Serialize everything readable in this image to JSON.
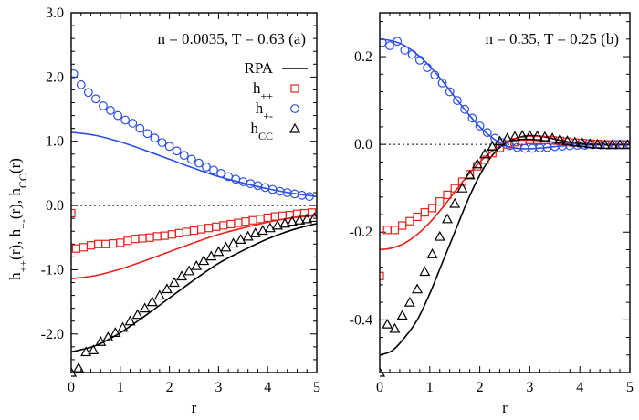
{
  "chart_data": [
    {
      "type": "scatter",
      "panel": "(a)",
      "annotation": "n = 0.0035, T = 0.63",
      "xlabel": "r",
      "ylabel": "h₊₊(r),  h₊₋(r),  hCC(r)",
      "xlim": [
        0,
        5
      ],
      "ylim": [
        -2.6,
        3.0
      ],
      "x_ticks": [
        "0",
        "1",
        "2",
        "3",
        "4",
        "5"
      ],
      "y_ticks": [
        {
          "v": 3.0,
          "label": "3.0"
        },
        {
          "v": 2.0,
          "label": "2.0"
        },
        {
          "v": 1.0,
          "label": "1.0"
        },
        {
          "v": 0.0,
          "label": "0.0"
        },
        {
          "v": -1.0,
          "label": "-1.0"
        },
        {
          "v": -2.0,
          "label": "-2.0"
        }
      ],
      "zero_line": true,
      "legend": {
        "placement": "top-right",
        "entries": [
          {
            "label": "RPA",
            "marker": "line",
            "color": "#000000"
          },
          {
            "label": "h",
            "sub": "++",
            "marker": "square",
            "color": "#e8221b"
          },
          {
            "label": "h",
            "sub": "+-",
            "marker": "circle",
            "color": "#2b4fe6"
          },
          {
            "label": "h",
            "sub": "CC",
            "marker": "triangle",
            "color": "#000000"
          }
        ]
      },
      "lines": [
        {
          "name": "RPA h+-",
          "color": "#2b4fe6",
          "x": [
            0,
            0.5,
            1,
            1.5,
            2,
            2.5,
            3,
            3.5,
            4,
            4.5,
            5
          ],
          "y": [
            1.14,
            1.09,
            0.99,
            0.86,
            0.72,
            0.58,
            0.45,
            0.35,
            0.26,
            0.19,
            0.14
          ]
        },
        {
          "name": "RPA h++",
          "color": "#e8221b",
          "x": [
            0,
            0.5,
            1,
            1.5,
            2,
            2.5,
            3,
            3.5,
            4,
            4.5,
            5
          ],
          "y": [
            -1.14,
            -1.09,
            -0.99,
            -0.86,
            -0.72,
            -0.58,
            -0.45,
            -0.35,
            -0.26,
            -0.19,
            -0.14
          ]
        },
        {
          "name": "RPA hCC",
          "color": "#000000",
          "x": [
            0,
            0.5,
            1,
            1.5,
            2,
            2.5,
            3,
            3.5,
            4,
            4.5,
            5
          ],
          "y": [
            -2.28,
            -2.18,
            -1.98,
            -1.72,
            -1.44,
            -1.16,
            -0.9,
            -0.7,
            -0.52,
            -0.38,
            -0.28
          ]
        }
      ],
      "series": [
        {
          "name": "h++",
          "marker": "square",
          "color": "#e8221b",
          "x": [
            0.0,
            0.1,
            0.25,
            0.4,
            0.55,
            0.7,
            0.85,
            1.0,
            1.15,
            1.3,
            1.45,
            1.6,
            1.75,
            1.9,
            2.05,
            2.2,
            2.35,
            2.5,
            2.65,
            2.8,
            2.95,
            3.1,
            3.25,
            3.4,
            3.55,
            3.7,
            3.85,
            4.0,
            4.15,
            4.3,
            4.45,
            4.6,
            4.75,
            4.9
          ],
          "y": [
            -0.12,
            -0.67,
            -0.65,
            -0.62,
            -0.6,
            -0.6,
            -0.59,
            -0.58,
            -0.55,
            -0.52,
            -0.51,
            -0.5,
            -0.48,
            -0.47,
            -0.45,
            -0.43,
            -0.41,
            -0.39,
            -0.37,
            -0.35,
            -0.33,
            -0.31,
            -0.29,
            -0.27,
            -0.25,
            -0.23,
            -0.21,
            -0.19,
            -0.17,
            -0.16,
            -0.15,
            -0.13,
            -0.12,
            -0.11
          ]
        },
        {
          "name": "h+-",
          "marker": "circle",
          "color": "#2b4fe6",
          "x": [
            0.05,
            0.2,
            0.35,
            0.5,
            0.65,
            0.8,
            0.95,
            1.1,
            1.25,
            1.4,
            1.55,
            1.7,
            1.85,
            2.0,
            2.15,
            2.3,
            2.45,
            2.6,
            2.75,
            2.9,
            3.05,
            3.2,
            3.35,
            3.5,
            3.65,
            3.8,
            3.95,
            4.1,
            4.25,
            4.4,
            4.55,
            4.7,
            4.85
          ],
          "y": [
            2.05,
            1.88,
            1.76,
            1.66,
            1.55,
            1.48,
            1.4,
            1.33,
            1.28,
            1.2,
            1.12,
            1.05,
            0.98,
            0.92,
            0.85,
            0.78,
            0.72,
            0.66,
            0.6,
            0.55,
            0.5,
            0.45,
            0.41,
            0.37,
            0.34,
            0.31,
            0.28,
            0.25,
            0.22,
            0.2,
            0.18,
            0.16,
            0.14
          ]
        },
        {
          "name": "hCC",
          "marker": "triangle",
          "color": "#000000",
          "x": [
            0.0,
            0.15,
            0.3,
            0.45,
            0.6,
            0.75,
            0.9,
            1.05,
            1.2,
            1.35,
            1.5,
            1.65,
            1.8,
            1.95,
            2.1,
            2.25,
            2.4,
            2.55,
            2.7,
            2.85,
            3.0,
            3.15,
            3.3,
            3.45,
            3.6,
            3.75,
            3.9,
            4.05,
            4.2,
            4.35,
            4.5,
            4.65,
            4.8,
            4.95
          ],
          "y": [
            -2.6,
            -2.53,
            -2.28,
            -2.25,
            -2.12,
            -2.05,
            -1.98,
            -1.9,
            -1.8,
            -1.7,
            -1.6,
            -1.5,
            -1.4,
            -1.3,
            -1.2,
            -1.1,
            -1.02,
            -0.94,
            -0.86,
            -0.79,
            -0.72,
            -0.65,
            -0.59,
            -0.53,
            -0.48,
            -0.43,
            -0.39,
            -0.35,
            -0.31,
            -0.28,
            -0.25,
            -0.23,
            -0.21,
            -0.19
          ]
        }
      ]
    },
    {
      "type": "scatter",
      "panel": "(b)",
      "annotation": "n = 0.35, T = 0.25",
      "xlabel": "r",
      "xlim": [
        0,
        5
      ],
      "ylim": [
        -0.52,
        0.3
      ],
      "x_ticks": [
        "0",
        "1",
        "2",
        "3",
        "4",
        "5"
      ],
      "y_ticks": [
        {
          "v": 0.2,
          "label": "0.2"
        },
        {
          "v": 0.0,
          "label": "0.0"
        },
        {
          "v": -0.2,
          "label": "-0.2"
        },
        {
          "v": -0.4,
          "label": "-0.4"
        }
      ],
      "zero_line": true,
      "lines": [
        {
          "name": "RPA h+-",
          "color": "#2b4fe6",
          "x": [
            0,
            0.25,
            0.5,
            0.75,
            1,
            1.25,
            1.5,
            1.75,
            2,
            2.25,
            2.5,
            2.75,
            3,
            3.25,
            3.5,
            3.75,
            4,
            4.25,
            4.5,
            4.75,
            5
          ],
          "y": [
            0.24,
            0.236,
            0.225,
            0.205,
            0.178,
            0.145,
            0.108,
            0.072,
            0.04,
            0.015,
            -0.002,
            -0.009,
            -0.01,
            -0.008,
            -0.005,
            -0.003,
            -0.002,
            -0.001,
            -0.001,
            0.0,
            0.0
          ]
        },
        {
          "name": "RPA h++",
          "color": "#e8221b",
          "x": [
            0,
            0.25,
            0.5,
            0.75,
            1,
            1.25,
            1.5,
            1.75,
            2,
            2.25,
            2.5,
            2.75,
            3,
            3.25,
            3.5,
            3.75,
            4,
            4.25,
            4.5,
            4.75,
            5
          ],
          "y": [
            -0.24,
            -0.236,
            -0.225,
            -0.205,
            -0.178,
            -0.145,
            -0.108,
            -0.072,
            -0.04,
            -0.015,
            0.002,
            0.009,
            0.01,
            0.008,
            0.005,
            0.003,
            0.002,
            0.001,
            0.001,
            0.0,
            0.0
          ]
        },
        {
          "name": "RPA hCC",
          "color": "#000000",
          "x": [
            0,
            0.25,
            0.5,
            0.75,
            1,
            1.25,
            1.5,
            1.75,
            2,
            2.25,
            2.5,
            2.75,
            3,
            3.25,
            3.5,
            3.75,
            4,
            4.25,
            4.5,
            4.75,
            5
          ],
          "y": [
            -0.48,
            -0.47,
            -0.44,
            -0.4,
            -0.34,
            -0.27,
            -0.2,
            -0.13,
            -0.07,
            -0.025,
            0.002,
            0.015,
            0.02,
            0.018,
            0.012,
            0.006,
            0.002,
            0.0,
            -0.001,
            -0.001,
            -0.001
          ]
        }
      ],
      "series": [
        {
          "name": "h++",
          "marker": "square",
          "color": "#e8221b",
          "x": [
            0.0,
            0.15,
            0.3,
            0.45,
            0.6,
            0.75,
            0.9,
            1.05,
            1.2,
            1.35,
            1.5,
            1.65,
            1.8,
            1.95,
            2.1,
            2.25,
            2.4,
            2.55,
            2.7,
            2.85,
            3.0,
            3.15,
            3.3,
            3.45,
            3.6,
            3.75,
            3.9,
            4.05,
            4.2,
            4.35,
            4.5,
            4.65,
            4.8,
            4.95
          ],
          "y": [
            -0.3,
            -0.195,
            -0.195,
            -0.185,
            -0.175,
            -0.165,
            -0.155,
            -0.145,
            -0.13,
            -0.115,
            -0.1,
            -0.085,
            -0.068,
            -0.05,
            -0.035,
            -0.02,
            -0.008,
            0.0,
            0.005,
            0.008,
            0.01,
            0.01,
            0.01,
            0.009,
            0.008,
            0.006,
            0.004,
            0.003,
            0.002,
            0.001,
            0.0,
            0.0,
            0.0,
            0.0
          ]
        },
        {
          "name": "h+-",
          "marker": "circle",
          "color": "#2b4fe6",
          "x": [
            0.05,
            0.2,
            0.35,
            0.5,
            0.65,
            0.8,
            0.95,
            1.1,
            1.25,
            1.4,
            1.55,
            1.7,
            1.85,
            2.0,
            2.15,
            2.3,
            2.45,
            2.6,
            2.75,
            2.9,
            3.05,
            3.2,
            3.35,
            3.5,
            3.65,
            3.8,
            3.95,
            4.1,
            4.25,
            4.4,
            4.55,
            4.7,
            4.85,
            5.0
          ],
          "y": [
            0.232,
            0.225,
            0.235,
            0.215,
            0.205,
            0.192,
            0.175,
            0.158,
            0.14,
            0.12,
            0.1,
            0.08,
            0.06,
            0.042,
            0.027,
            0.014,
            0.004,
            -0.003,
            -0.007,
            -0.009,
            -0.009,
            -0.008,
            -0.007,
            -0.005,
            -0.004,
            -0.003,
            -0.002,
            -0.002,
            -0.001,
            -0.001,
            -0.001,
            0.0,
            0.0,
            0.0
          ]
        },
        {
          "name": "hCC",
          "marker": "triangle",
          "color": "#000000",
          "x": [
            0.0,
            0.15,
            0.3,
            0.45,
            0.6,
            0.75,
            0.9,
            1.05,
            1.2,
            1.35,
            1.5,
            1.65,
            1.8,
            1.95,
            2.1,
            2.25,
            2.4,
            2.55,
            2.7,
            2.85,
            3.0,
            3.15,
            3.3,
            3.45,
            3.6,
            3.75,
            3.9,
            4.05,
            4.2,
            4.35,
            4.5,
            4.65,
            4.8,
            4.95
          ],
          "y": [
            -0.52,
            -0.41,
            -0.42,
            -0.39,
            -0.36,
            -0.33,
            -0.29,
            -0.25,
            -0.21,
            -0.17,
            -0.135,
            -0.1,
            -0.07,
            -0.045,
            -0.022,
            -0.005,
            0.007,
            0.014,
            0.018,
            0.02,
            0.02,
            0.019,
            0.017,
            0.014,
            0.011,
            0.008,
            0.005,
            0.003,
            0.001,
            0.0,
            -0.001,
            -0.001,
            -0.001,
            -0.001
          ]
        }
      ]
    }
  ]
}
